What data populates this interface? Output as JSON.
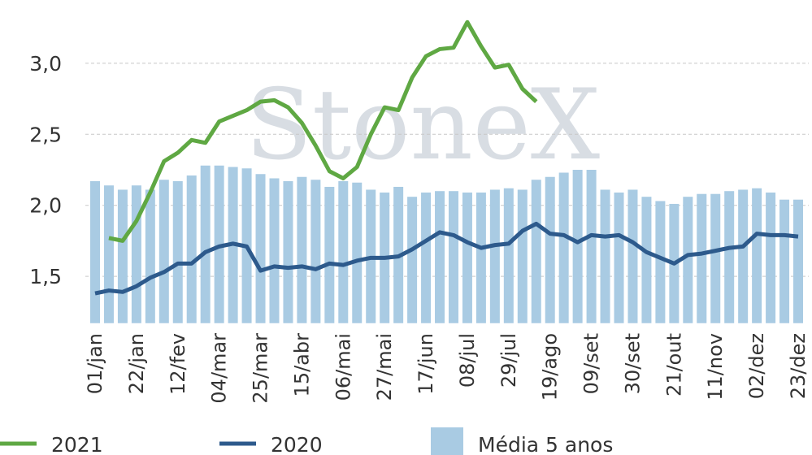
{
  "chart_data": {
    "type": "bar_line",
    "watermark": "StoneX",
    "categories": [
      "01/jan",
      null,
      null,
      "22/jan",
      null,
      null,
      "12/fev",
      null,
      null,
      "04/mar",
      null,
      null,
      "25/mar",
      null,
      null,
      "15/abr",
      null,
      null,
      "06/mai",
      null,
      null,
      "27/mai",
      null,
      null,
      "17/jun",
      null,
      null,
      "08/jul",
      null,
      null,
      "29/jul",
      null,
      null,
      "19/ago",
      null,
      null,
      "09/set",
      null,
      null,
      "30/set",
      null,
      null,
      "21/out",
      null,
      null,
      "11/nov",
      null,
      null,
      "02/dez",
      null,
      null,
      "23/dez"
    ],
    "ylim": [
      1.17,
      3.35
    ],
    "yticks": [
      {
        "value": 1.5,
        "label": "1,5"
      },
      {
        "value": 2.0,
        "label": "2,0"
      },
      {
        "value": 2.5,
        "label": "2,5"
      },
      {
        "value": 3.0,
        "label": "3,0"
      }
    ],
    "grid": true,
    "legend": "bottom",
    "series": [
      {
        "name": "2021",
        "kind": "line",
        "color": "#5fa843",
        "values": [
          null,
          1.77,
          1.75,
          1.89,
          2.09,
          2.31,
          2.37,
          2.46,
          2.44,
          2.59,
          2.63,
          2.67,
          2.73,
          2.74,
          2.69,
          2.58,
          2.42,
          2.24,
          2.19,
          2.27,
          2.5,
          2.69,
          2.67,
          2.9,
          3.05,
          3.1,
          3.11,
          3.29,
          3.12,
          2.97,
          2.99,
          2.82,
          2.73,
          null,
          null,
          null,
          null,
          null,
          null,
          null,
          null,
          null,
          null,
          null,
          null,
          null,
          null,
          null,
          null,
          null,
          null,
          null
        ]
      },
      {
        "name": "2020",
        "kind": "line",
        "color": "#2d5a8c",
        "values": [
          1.38,
          1.4,
          1.39,
          1.43,
          1.49,
          1.53,
          1.59,
          1.59,
          1.67,
          1.71,
          1.73,
          1.71,
          1.54,
          1.57,
          1.56,
          1.57,
          1.55,
          1.59,
          1.58,
          1.61,
          1.63,
          1.63,
          1.64,
          1.69,
          1.75,
          1.81,
          1.79,
          1.74,
          1.7,
          1.72,
          1.73,
          1.82,
          1.87,
          1.8,
          1.79,
          1.74,
          1.79,
          1.78,
          1.79,
          1.74,
          1.67,
          1.63,
          1.59,
          1.65,
          1.66,
          1.68,
          1.7,
          1.71,
          1.8,
          1.79,
          1.79,
          1.78
        ]
      },
      {
        "name": "Média 5 anos",
        "kind": "bar",
        "color": "#a9cbe3",
        "values": [
          2.17,
          2.14,
          2.11,
          2.14,
          2.11,
          2.18,
          2.17,
          2.21,
          2.28,
          2.28,
          2.27,
          2.26,
          2.22,
          2.19,
          2.17,
          2.2,
          2.18,
          2.13,
          2.17,
          2.16,
          2.11,
          2.09,
          2.13,
          2.06,
          2.09,
          2.1,
          2.1,
          2.09,
          2.09,
          2.11,
          2.12,
          2.11,
          2.18,
          2.2,
          2.23,
          2.25,
          2.25,
          2.11,
          2.09,
          2.11,
          2.06,
          2.03,
          2.01,
          2.06,
          2.08,
          2.08,
          2.1,
          2.11,
          2.12,
          2.09,
          2.04,
          2.04
        ]
      }
    ]
  }
}
